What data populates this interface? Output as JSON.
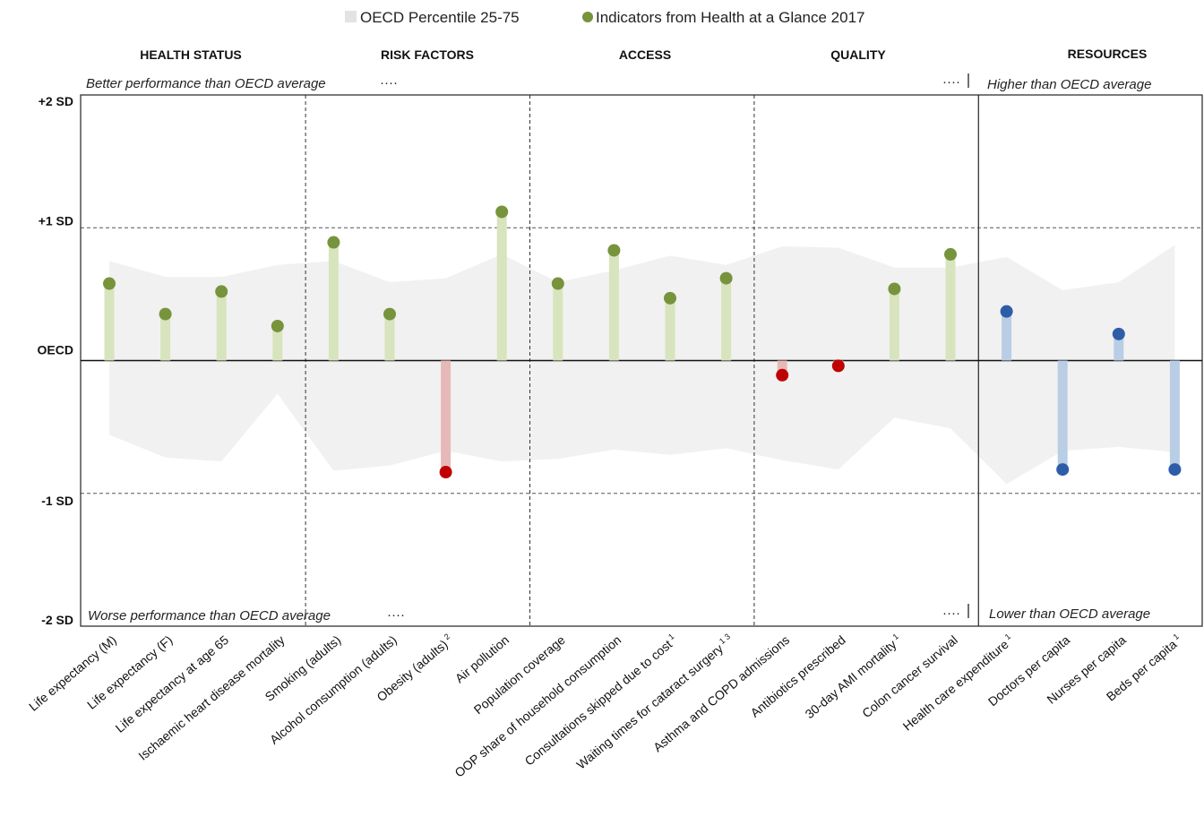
{
  "chart_data": {
    "type": "lollipop",
    "legend": {
      "band_label": "OECD Percentile 25-75",
      "marker_label": "Indicators from Health at a Glance 2017"
    },
    "sections": [
      {
        "label": "HEALTH STATUS",
        "from": 0,
        "to": 3
      },
      {
        "label": "RISK FACTORS",
        "from": 4,
        "to": 7
      },
      {
        "label": "ACCESS",
        "from": 8,
        "to": 11
      },
      {
        "label": "QUALITY",
        "from": 12,
        "to": 15
      },
      {
        "label": "RESOURCES",
        "from": 16,
        "to": 19
      }
    ],
    "annotations": {
      "better": "Better performance than OECD average",
      "worse": "Worse performance than OECD average",
      "higher": "Higher than OECD average",
      "lower": "Lower than OECD average",
      "dots": "····"
    },
    "y_tick_labels": [
      "+2 SD",
      "+1 SD",
      "OECD",
      "-1 SD",
      "-2 SD"
    ],
    "y_tick_values": [
      2,
      1,
      0,
      -1,
      -2
    ],
    "ylim": [
      -2,
      2
    ],
    "categories": [
      {
        "label": "Life expectancy (M)",
        "sup": ""
      },
      {
        "label": "Life expectancy (F)",
        "sup": ""
      },
      {
        "label": "Life expectancy at age 65",
        "sup": ""
      },
      {
        "label": "Ischaemic heart disease mortality",
        "sup": ""
      },
      {
        "label": "Smoking (adults)",
        "sup": ""
      },
      {
        "label": "Alcohol consumption (adults)",
        "sup": ""
      },
      {
        "label": "Obesity (adults)",
        "sup": "2"
      },
      {
        "label": "Air pollution",
        "sup": ""
      },
      {
        "label": "Population coverage",
        "sup": ""
      },
      {
        "label": "OOP share of household consumption",
        "sup": ""
      },
      {
        "label": "Consultations skipped due to cost",
        "sup": "1"
      },
      {
        "label": "Waiting times for cataract surgery",
        "sup": "1 3"
      },
      {
        "label": "Asthma and COPD admissions",
        "sup": ""
      },
      {
        "label": "Antibiotics prescribed",
        "sup": ""
      },
      {
        "label": "30-day AMI mortality",
        "sup": "1"
      },
      {
        "label": "Colon cancer survival",
        "sup": ""
      },
      {
        "label": "Health care expenditure",
        "sup": "1"
      },
      {
        "label": "Doctors per capita",
        "sup": ""
      },
      {
        "label": "Nurses per capita",
        "sup": ""
      },
      {
        "label": "Beds per capita",
        "sup": "1"
      }
    ],
    "values": [
      0.58,
      0.35,
      0.52,
      0.26,
      0.89,
      0.35,
      -0.84,
      1.12,
      0.58,
      0.83,
      0.47,
      0.62,
      -0.11,
      -0.04,
      0.54,
      0.8,
      0.37,
      -0.82,
      0.2,
      -0.82
    ],
    "band_upper": [
      0.75,
      0.63,
      0.63,
      0.72,
      0.75,
      0.59,
      0.62,
      0.8,
      0.59,
      0.68,
      0.79,
      0.72,
      0.86,
      0.85,
      0.7,
      0.7,
      0.78,
      0.53,
      0.59,
      0.87
    ],
    "band_lower": [
      -0.56,
      -0.73,
      -0.76,
      -0.25,
      -0.83,
      -0.79,
      -0.68,
      -0.76,
      -0.74,
      -0.67,
      -0.71,
      -0.66,
      -0.75,
      -0.82,
      -0.43,
      -0.51,
      -0.93,
      -0.68,
      -0.65,
      -0.69
    ],
    "colors": {
      "positive_marker": "#77933C",
      "positive_stem": "#D7E4BD",
      "negative_marker": "#C00000",
      "negative_stem": "#E6B9B8",
      "resource_marker": "#2E5DA8",
      "resource_stem": "#B9CDE5",
      "band": "#F1F1F1",
      "legend_band": "#E3E3E3"
    },
    "grid": "dashed at ±1 SD",
    "legend_position": "top-center"
  }
}
